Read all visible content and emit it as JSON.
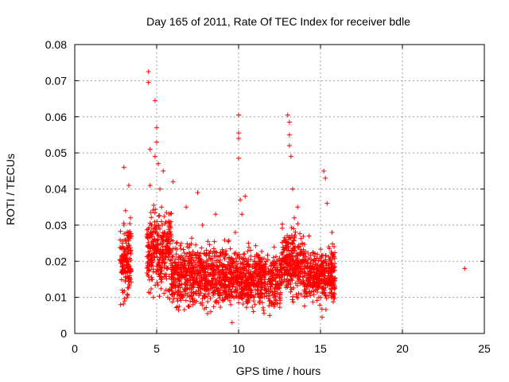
{
  "chart_data": {
    "type": "scatter",
    "title": "Day 165 of 2011, Rate Of TEC Index for receiver bdle",
    "xlabel": "GPS time / hours",
    "ylabel": "ROTI / TECUs",
    "xlim": [
      0,
      25
    ],
    "ylim": [
      0,
      0.08
    ],
    "x_ticks": [
      "0",
      "5",
      "10",
      "15",
      "20",
      "25"
    ],
    "y_ticks": [
      "0",
      "0.01",
      "0.02",
      "0.03",
      "0.04",
      "0.05",
      "0.06",
      "0.07",
      "0.08"
    ],
    "grid": true,
    "marker": "plus",
    "color": "#ff0000",
    "points": [
      [
        2.8,
        0.008
      ],
      [
        2.9,
        0.012
      ],
      [
        2.9,
        0.025
      ],
      [
        3.0,
        0.03
      ],
      [
        3.0,
        0.046
      ],
      [
        3.1,
        0.018
      ],
      [
        3.1,
        0.034
      ],
      [
        3.2,
        0.01
      ],
      [
        3.2,
        0.022
      ],
      [
        3.3,
        0.041
      ],
      [
        3.3,
        0.028
      ],
      [
        3.4,
        0.015
      ],
      [
        3.4,
        0.032
      ],
      [
        2.85,
        0.02
      ],
      [
        3.05,
        0.009
      ],
      [
        3.25,
        0.026
      ],
      [
        4.5,
        0.0725
      ],
      [
        4.5,
        0.0695
      ],
      [
        4.6,
        0.051
      ],
      [
        4.6,
        0.041
      ],
      [
        4.7,
        0.03
      ],
      [
        4.7,
        0.015
      ],
      [
        4.8,
        0.022
      ],
      [
        4.8,
        0.01
      ],
      [
        4.9,
        0.0645
      ],
      [
        4.9,
        0.049
      ],
      [
        5.0,
        0.057
      ],
      [
        5.0,
        0.053
      ],
      [
        5.1,
        0.047
      ],
      [
        5.2,
        0.04
      ],
      [
        5.3,
        0.035
      ],
      [
        5.4,
        0.045
      ],
      [
        5.5,
        0.028
      ],
      [
        5.6,
        0.018
      ],
      [
        5.8,
        0.012
      ],
      [
        6.0,
        0.042
      ],
      [
        6.2,
        0.025
      ],
      [
        6.4,
        0.015
      ],
      [
        6.6,
        0.01
      ],
      [
        6.8,
        0.035
      ],
      [
        7.0,
        0.02
      ],
      [
        7.2,
        0.008
      ],
      [
        7.5,
        0.039
      ],
      [
        7.8,
        0.03
      ],
      [
        8.0,
        0.014
      ],
      [
        8.3,
        0.006
      ],
      [
        8.6,
        0.033
      ],
      [
        9.0,
        0.022
      ],
      [
        9.3,
        0.011
      ],
      [
        9.6,
        0.003
      ],
      [
        9.8,
        0.028
      ],
      [
        10.0,
        0.0605
      ],
      [
        10.0,
        0.0555
      ],
      [
        10.0,
        0.054
      ],
      [
        10.0,
        0.0485
      ],
      [
        10.1,
        0.037
      ],
      [
        10.2,
        0.033
      ],
      [
        10.4,
        0.038
      ],
      [
        10.6,
        0.025
      ],
      [
        10.8,
        0.016
      ],
      [
        11.0,
        0.008
      ],
      [
        11.3,
        0.021
      ],
      [
        11.6,
        0.012
      ],
      [
        11.9,
        0.005
      ],
      [
        12.2,
        0.02
      ],
      [
        12.5,
        0.01
      ],
      [
        12.8,
        0.015
      ],
      [
        13.0,
        0.0605
      ],
      [
        13.1,
        0.0585
      ],
      [
        13.1,
        0.055
      ],
      [
        13.1,
        0.052
      ],
      [
        13.2,
        0.049
      ],
      [
        13.3,
        0.04
      ],
      [
        13.4,
        0.032
      ],
      [
        13.6,
        0.035
      ],
      [
        13.8,
        0.022
      ],
      [
        14.0,
        0.012
      ],
      [
        14.3,
        0.027
      ],
      [
        14.6,
        0.018
      ],
      [
        14.9,
        0.01
      ],
      [
        15.1,
        0.0045
      ],
      [
        15.2,
        0.045
      ],
      [
        15.3,
        0.043
      ],
      [
        15.4,
        0.036
      ],
      [
        15.5,
        0.024
      ],
      [
        15.6,
        0.015
      ],
      [
        15.7,
        0.028
      ],
      [
        15.8,
        0.01
      ],
      [
        23.8,
        0.018
      ]
    ],
    "bands": [
      {
        "x0": 2.75,
        "x1": 3.45,
        "ylo": 0.006,
        "yhi": 0.034,
        "n": 140
      },
      {
        "x0": 4.4,
        "x1": 5.9,
        "ylo": 0.008,
        "yhi": 0.038,
        "n": 320
      },
      {
        "x0": 5.9,
        "x1": 9.5,
        "ylo": 0.004,
        "yhi": 0.028,
        "n": 700
      },
      {
        "x0": 9.5,
        "x1": 12.6,
        "ylo": 0.004,
        "yhi": 0.026,
        "n": 600
      },
      {
        "x0": 12.6,
        "x1": 14.0,
        "ylo": 0.007,
        "yhi": 0.032,
        "n": 280
      },
      {
        "x0": 14.0,
        "x1": 15.9,
        "ylo": 0.006,
        "yhi": 0.026,
        "n": 360
      }
    ]
  }
}
